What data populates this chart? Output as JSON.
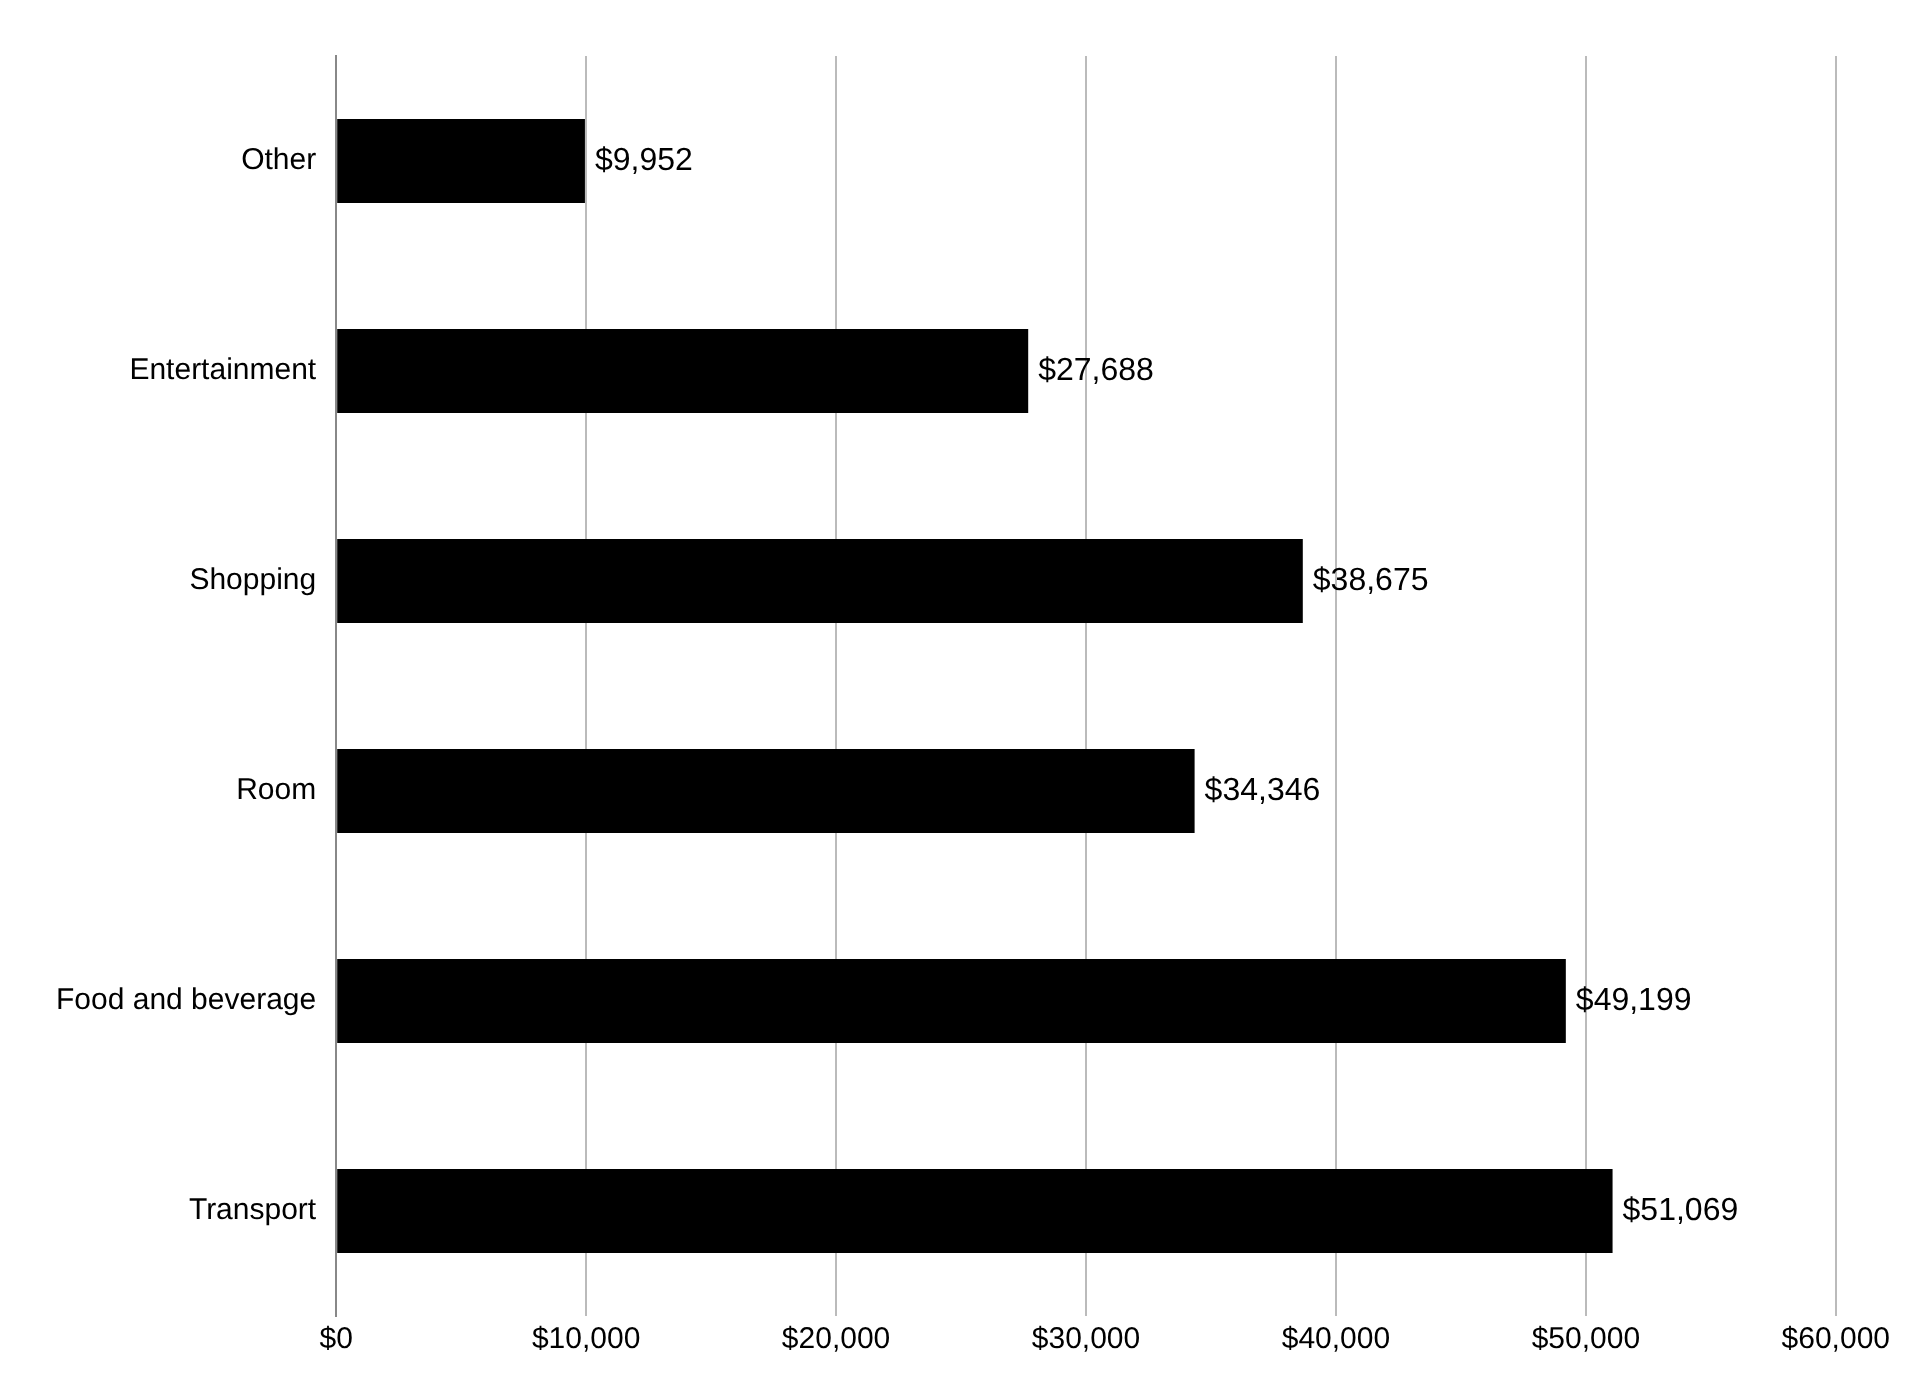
{
  "chart_data": {
    "type": "bar",
    "orientation": "horizontal",
    "categories": [
      "Other",
      "Entertainment",
      "Shopping",
      "Room",
      "Food and beverage",
      "Transport"
    ],
    "values": [
      9952,
      27688,
      38675,
      34346,
      49199,
      51069
    ],
    "value_labels": [
      "$9,952",
      "$27,688",
      "$38,675",
      "$34,346",
      "$49,199",
      "$51,069"
    ],
    "color": "#000000",
    "xlim": [
      0,
      60000
    ],
    "xticks": [
      {
        "value": 0,
        "label": "$0"
      },
      {
        "value": 10000,
        "label": "$10,000"
      },
      {
        "value": 20000,
        "label": "$20,000"
      },
      {
        "value": 30000,
        "label": "$30,000"
      },
      {
        "value": 40000,
        "label": "$40,000"
      },
      {
        "value": 50000,
        "label": "$50,000"
      },
      {
        "value": 60000,
        "label": "$60,000"
      }
    ],
    "grid": "x",
    "legend": false
  }
}
